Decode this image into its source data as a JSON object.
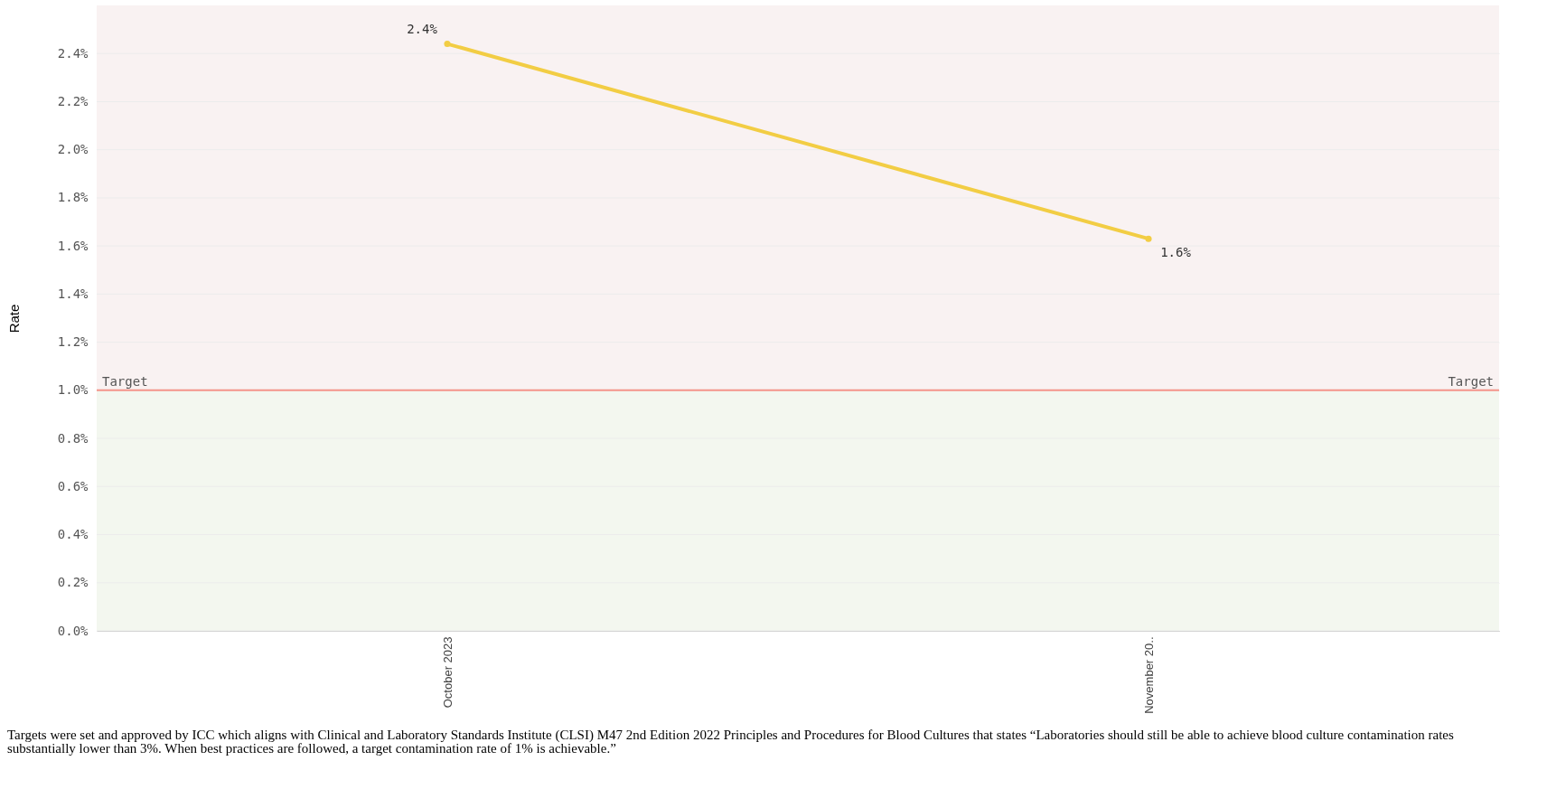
{
  "chart_data": {
    "type": "line",
    "ylabel": "Rate",
    "categories": [
      "October 2023",
      "November 20.."
    ],
    "series": [
      {
        "color": "#f2cd44",
        "values": [
          2.44,
          1.63
        ],
        "value_labels": [
          "2.4%",
          "1.6%"
        ]
      }
    ],
    "ylim": [
      0,
      2.6
    ],
    "yticks": [
      {
        "value": 0,
        "label": "0.0%"
      },
      {
        "value": 0.2,
        "label": "0.2%"
      },
      {
        "value": 0.4,
        "label": "0.4%"
      },
      {
        "value": 0.6,
        "label": "0.6%"
      },
      {
        "value": 0.8,
        "label": "0.8%"
      },
      {
        "value": 1.0,
        "label": "1.0%"
      },
      {
        "value": 1.2,
        "label": "1.2%"
      },
      {
        "value": 1.4,
        "label": "1.4%"
      },
      {
        "value": 1.6,
        "label": "1.6%"
      },
      {
        "value": 1.8,
        "label": "1.8%"
      },
      {
        "value": 2.0,
        "label": "2.0%"
      },
      {
        "value": 2.2,
        "label": "2.2%"
      },
      {
        "value": 2.4,
        "label": "2.4%"
      }
    ],
    "grid": "y",
    "marker": "circle",
    "ref_lines": [
      {
        "axis": "y",
        "value": 1.0,
        "label": "Target",
        "color": "#f4958a"
      }
    ],
    "bands": [
      {
        "axis": "y",
        "from": 1.0,
        "to": 2.6,
        "color": "#f9f2f2"
      },
      {
        "axis": "y",
        "from": 0,
        "to": 1.0,
        "color": "#f3f7ef"
      }
    ],
    "annotations": [
      "Targets were set and approved by ICC which aligns with Clinical and Laboratory Standards Institute (CLSI) M47 2nd Edition 2022 Principles and Procedures for Blood Cultures that states “Laboratories should still be able to achieve blood culture contamination rates substantially lower than 3%. When best practices are followed, a target contamination rate of 1% is achievable.”"
    ]
  }
}
